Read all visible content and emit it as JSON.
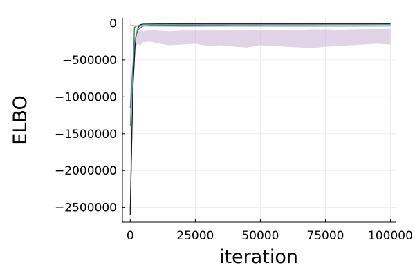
{
  "chart_data": {
    "type": "line",
    "title": "",
    "xlabel": "iteration",
    "ylabel": "ELBO",
    "xlim": [
      -3000,
      102000
    ],
    "ylim": [
      -2700000,
      70000
    ],
    "xticks": [
      0,
      25000,
      50000,
      75000,
      100000
    ],
    "xtick_labels": [
      "0",
      "25000",
      "50000",
      "75000",
      "100000"
    ],
    "yticks": [
      0,
      -500000,
      -1000000,
      -1500000,
      -2000000,
      -2500000
    ],
    "ytick_labels": [
      "0",
      "−500000",
      "−1000000",
      "−1500000",
      "−2000000",
      "−2500000"
    ],
    "grid": true,
    "legend": "none",
    "series": [
      {
        "color": "#7a62a8",
        "band_color": "#c9aed6",
        "x": [
          0,
          1000,
          2000,
          3000,
          4000,
          5000,
          7500,
          10000,
          15000,
          20000,
          25000,
          30000,
          35000,
          40000,
          45000,
          50000,
          55000,
          60000,
          65000,
          70000,
          75000,
          80000,
          85000,
          90000,
          95000,
          100000
        ],
        "values": [
          -1150000,
          -600000,
          -200000,
          -90000,
          -60000,
          -40000,
          -35000,
          -32000,
          -30000,
          -28000,
          -27000,
          -26000,
          -25500,
          -25000,
          -24500,
          -24000,
          -23500,
          -23500,
          -23000,
          -23000,
          -22500,
          -22500,
          -22000,
          -22000,
          -21500,
          -21500
        ],
        "lower": [
          -1350000,
          -700000,
          -320000,
          -280000,
          -300000,
          -260000,
          -250000,
          -270000,
          -300000,
          -290000,
          -280000,
          -310000,
          -300000,
          -320000,
          -330000,
          -300000,
          -310000,
          -320000,
          -330000,
          -340000,
          -320000,
          -310000,
          -300000,
          -290000,
          -280000,
          -290000
        ],
        "upper": [
          -950000,
          -450000,
          -130000,
          -110000,
          -100000,
          -110000,
          -90000,
          -100000,
          -110000,
          -100000,
          -100000,
          -100000,
          -100000,
          -95000,
          -95000,
          -90000,
          -90000,
          -95000,
          -90000,
          -85000,
          -85000,
          -90000,
          -85000,
          -80000,
          -80000,
          -80000
        ]
      },
      {
        "color": "#2e7d32",
        "x": [
          0,
          800,
          1600,
          2400,
          3200,
          4000,
          6000,
          10000,
          20000,
          40000,
          60000,
          80000,
          100000
        ],
        "values": [
          -2550000,
          -1200000,
          -60000,
          -40000,
          -30000,
          -25000,
          -22000,
          -20000,
          -20000,
          -19000,
          -18000,
          -18000,
          -18000
        ]
      },
      {
        "color": "#1a1a1a",
        "x": [
          0,
          1000,
          2000,
          3000,
          4000,
          5000,
          10000,
          20000,
          40000,
          60000,
          80000,
          100000
        ],
        "values": [
          -2600000,
          -900000,
          -220000,
          -60000,
          -20000,
          -15000,
          -12000,
          -11000,
          -10000,
          -10000,
          -10000,
          -10000
        ]
      },
      {
        "color": "#4a9e9e",
        "x": [
          0,
          1500,
          3000,
          5000,
          10000,
          30000,
          60000,
          100000
        ],
        "values": [
          -1400000,
          -300000,
          -40000,
          -22000,
          -20000,
          -19000,
          -19000,
          -19000
        ]
      },
      {
        "color": "#bbbbbb",
        "x": [
          0,
          5000,
          20000,
          40000,
          60000,
          80000,
          100000
        ],
        "values": [
          -30000,
          -40000,
          -45000,
          -42000,
          -44000,
          -43000,
          -42000
        ]
      }
    ]
  }
}
